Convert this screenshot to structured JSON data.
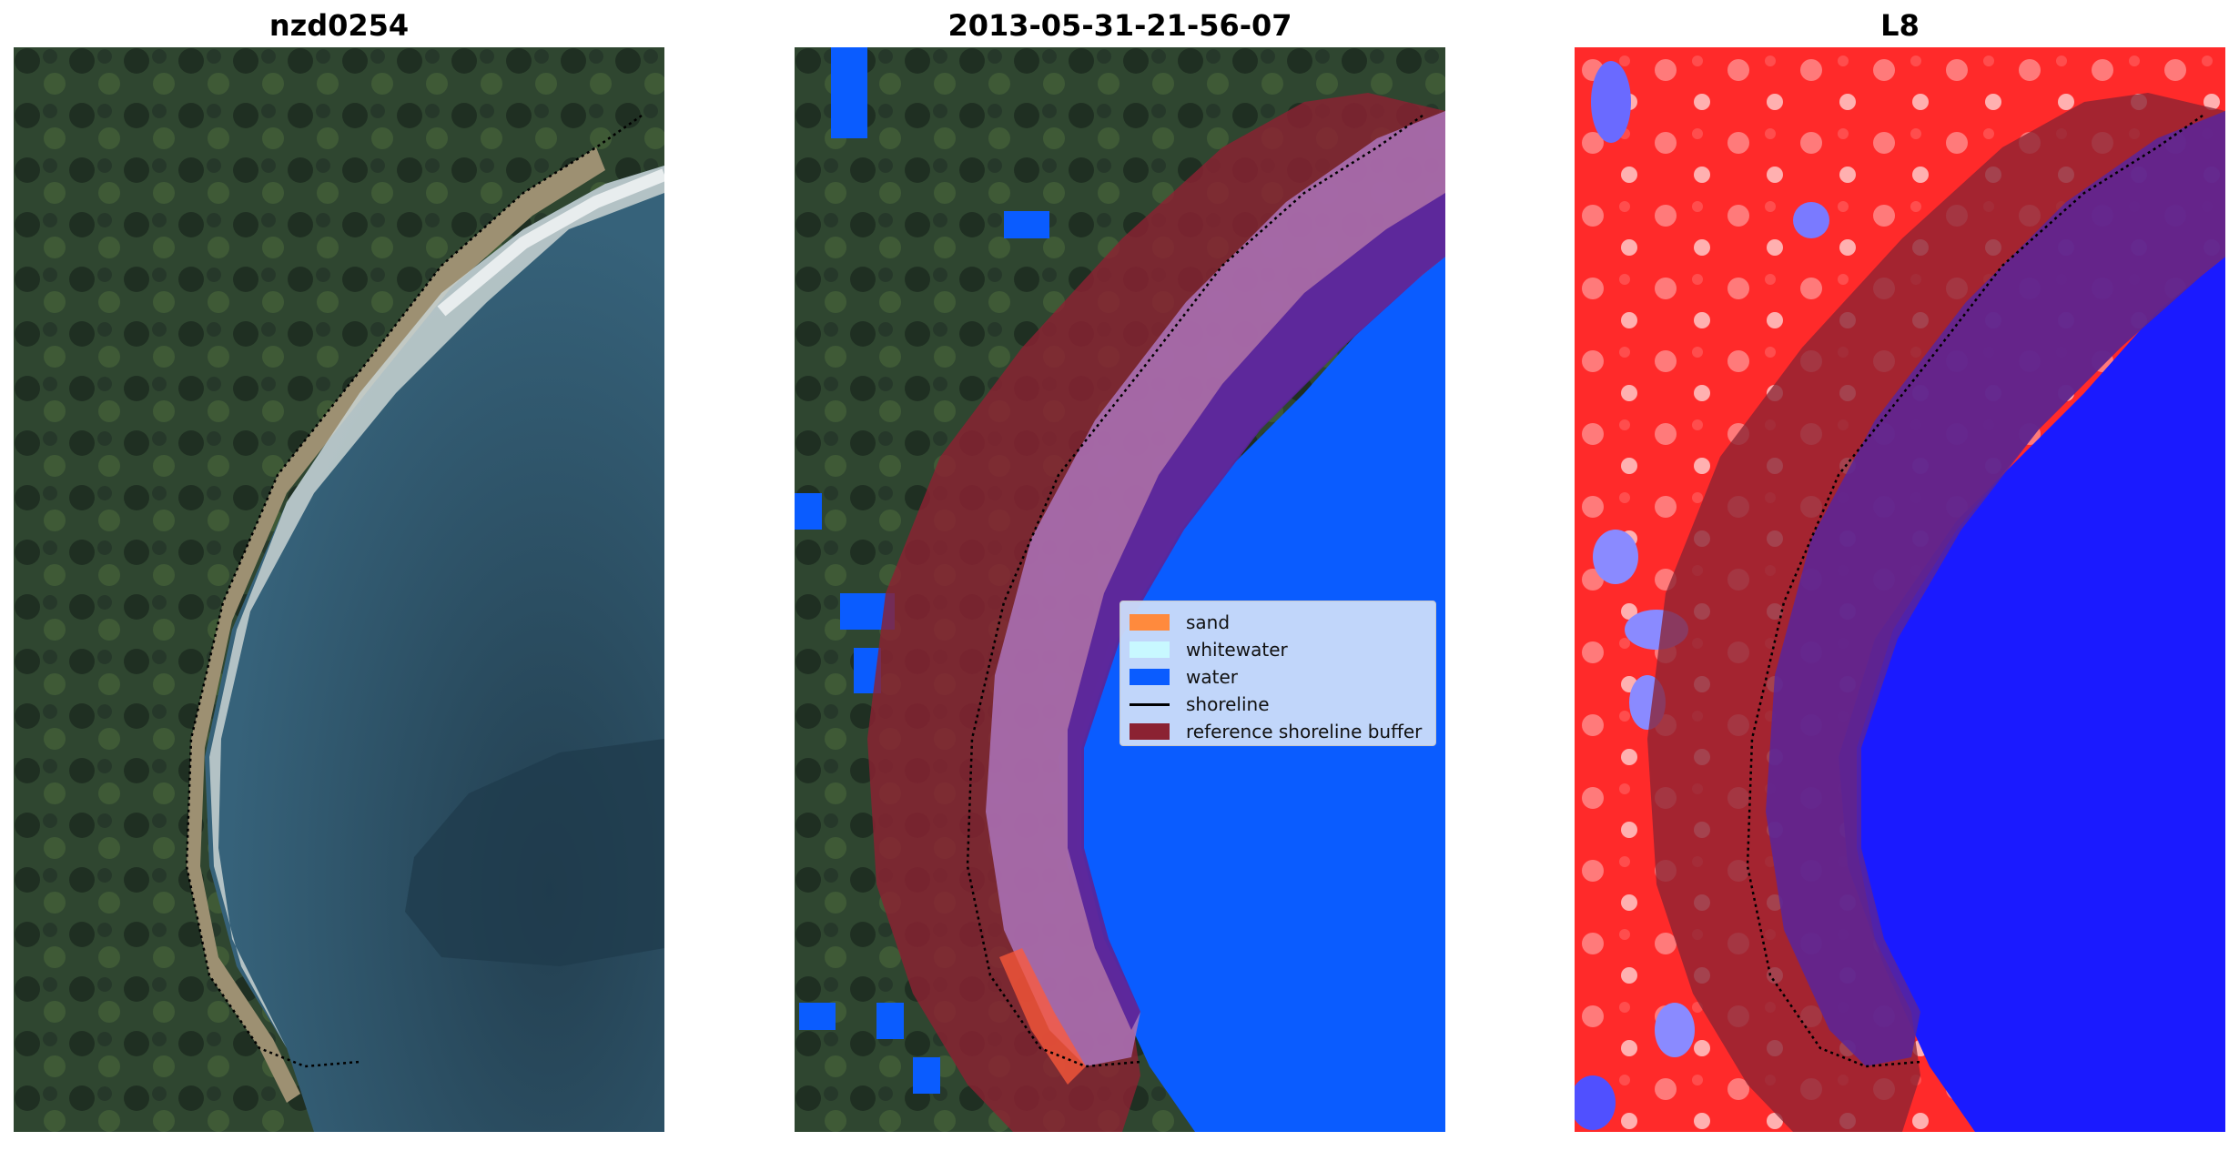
{
  "panels": [
    {
      "title": "nzd0254"
    },
    {
      "title": "2013-05-31-21-56-07"
    },
    {
      "title": "L8"
    }
  ],
  "legend": {
    "items": [
      {
        "label": "sand",
        "color": "#ff8a3d"
      },
      {
        "label": "whitewater",
        "color": "#c8f8ff"
      },
      {
        "label": "water",
        "color": "#0a5cff"
      },
      {
        "label": "shoreline",
        "color": "#000000"
      },
      {
        "label": "reference shoreline buffer",
        "color": "#8b2232"
      }
    ]
  },
  "colors": {
    "forest": "#2b3d2a",
    "ocean": "#2e5566",
    "buffer": "#8b2232",
    "classified_sand_band": "#a86fb3",
    "index_land": "#ff2a2a",
    "index_water": "#1a1aff"
  }
}
